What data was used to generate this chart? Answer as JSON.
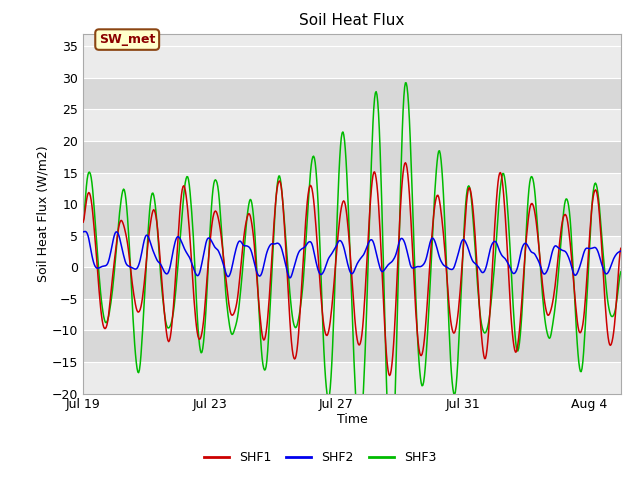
{
  "title": "Soil Heat Flux",
  "xlabel": "Time",
  "ylabel": "Soil Heat Flux (W/m2)",
  "ylim": [
    -20,
    37
  ],
  "yticks": [
    -20,
    -15,
    -10,
    -5,
    0,
    5,
    10,
    15,
    20,
    25,
    30,
    35
  ],
  "xlim_start": 0,
  "xlim_end": 17,
  "xtick_labels": [
    "Jul 19",
    "Jul 23",
    "Jul 27",
    "Jul 31",
    "Aug 4"
  ],
  "xtick_positions": [
    0,
    4,
    8,
    12,
    16
  ],
  "annotation_text": "SW_met",
  "shf1_color": "#cc0000",
  "shf2_color": "#0000ee",
  "shf3_color": "#00bb00",
  "bg_color": "#ffffff",
  "plot_bg_light": "#ebebeb",
  "plot_bg_dark": "#d8d8d8",
  "grid_color": "#ffffff",
  "legend_labels": [
    "SHF1",
    "SHF2",
    "SHF3"
  ],
  "days": 17,
  "n_points": 680
}
